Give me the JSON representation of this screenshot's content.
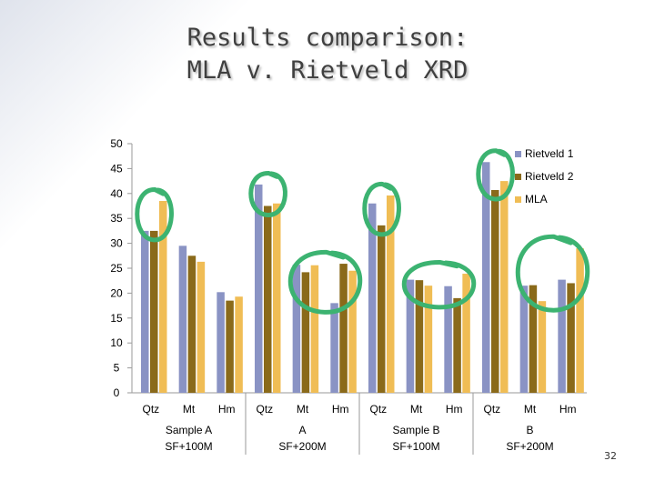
{
  "slide": {
    "title_line1": "Results comparison:",
    "title_line2": "MLA v. Rietveld XRD",
    "page_number": "32"
  },
  "colors": {
    "rietveld1": "#8a93c4",
    "rietveld2": "#8a6a1a",
    "mla": "#f0bd55",
    "circle": "#3cb371"
  },
  "chart_data": {
    "type": "bar",
    "minerals": [
      "Qtz",
      "Mt",
      "Hm"
    ],
    "groups": [
      {
        "label_line1": "Sample A",
        "label_line2": "SF+100M"
      },
      {
        "label_line1": "A",
        "label_line2": "SF+200M"
      },
      {
        "label_line1": "Sample B",
        "label_line2": "SF+100M"
      },
      {
        "label_line1": "B",
        "label_line2": "SF+200M"
      }
    ],
    "series": [
      {
        "name": "Rietveld 1",
        "values": [
          32.5,
          29.5,
          20.2,
          41.8,
          25.7,
          18,
          38,
          22.7,
          21.4,
          46.3,
          21.5,
          22.7
        ]
      },
      {
        "name": "Rietveld 2",
        "values": [
          32.5,
          27.5,
          18.5,
          37.5,
          24.2,
          25.9,
          33.6,
          22.6,
          19,
          40.7,
          21.6,
          22
        ]
      },
      {
        "name": "MLA",
        "values": [
          38.5,
          26.3,
          19.3,
          38,
          25.6,
          24.5,
          39.6,
          21.5,
          23.9,
          42.5,
          18.4,
          29
        ]
      }
    ],
    "y_ticks": [
      0,
      5,
      10,
      15,
      20,
      25,
      30,
      35,
      40,
      45,
      50
    ],
    "ylim": [
      0,
      50
    ],
    "legend_position": "top-right",
    "grid": false,
    "annotations": "green hand-drawn circles highlight the Qtz bars of each sample and the Mt/Hm bars of samples A SF+200M, B SF+100M and B SF+200M"
  }
}
